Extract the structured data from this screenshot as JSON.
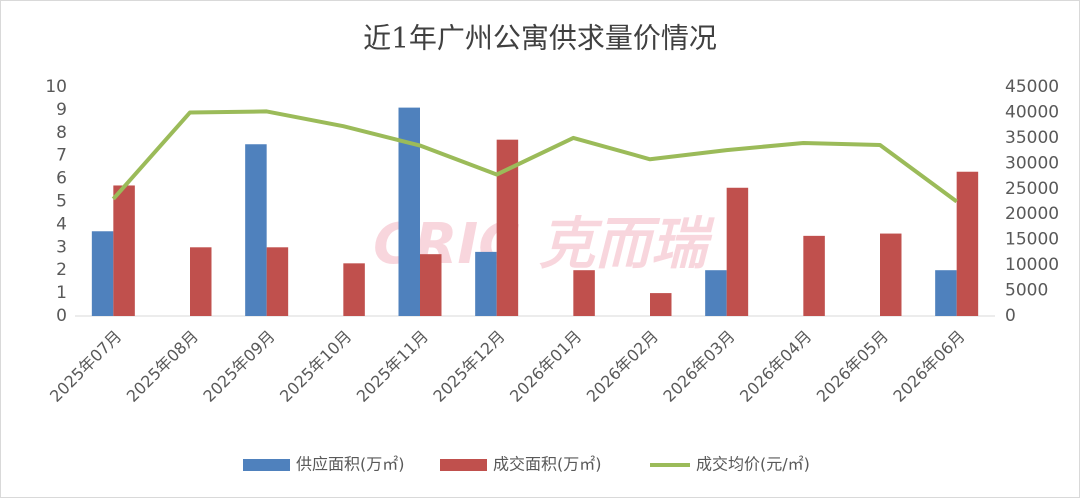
{
  "chart_data": {
    "type": "bar-line",
    "title": "近1年广州公寓供求量价情况",
    "watermark": "CRIC 克而瑞",
    "categories": [
      "2025年07月",
      "2025年08月",
      "2025年09月",
      "2025年10月",
      "2025年11月",
      "2025年12月",
      "2026年01月",
      "2026年02月",
      "2026年03月",
      "2026年04月",
      "2026年05月",
      "2026年06月"
    ],
    "series": [
      {
        "name": "供应面积(万㎡)",
        "type": "bar",
        "color": "#4f81bd",
        "values": [
          3.7,
          0,
          7.5,
          0,
          9.1,
          2.8,
          0,
          0,
          2.0,
          0,
          0,
          2.0
        ]
      },
      {
        "name": "成交面积(万㎡)",
        "type": "bar",
        "color": "#c0504d",
        "values": [
          5.7,
          3.0,
          3.0,
          2.3,
          2.7,
          7.7,
          2.0,
          1.0,
          5.6,
          3.5,
          3.6,
          6.3
        ]
      },
      {
        "name": "成交均价(元/㎡)",
        "type": "line",
        "axis": "y2",
        "color": "#9bbb59",
        "values": [
          23000,
          40000,
          40200,
          37300,
          33500,
          27800,
          35000,
          30800,
          32600,
          34000,
          33600,
          22500
        ]
      }
    ],
    "ylim": [
      0,
      10
    ],
    "yticks": [
      0,
      1,
      2,
      3,
      4,
      5,
      6,
      7,
      8,
      9,
      10
    ],
    "y2lim": [
      0,
      45000
    ],
    "y2ticks": [
      0,
      5000,
      10000,
      15000,
      20000,
      25000,
      30000,
      35000,
      40000,
      45000
    ],
    "legend": "bottom"
  }
}
